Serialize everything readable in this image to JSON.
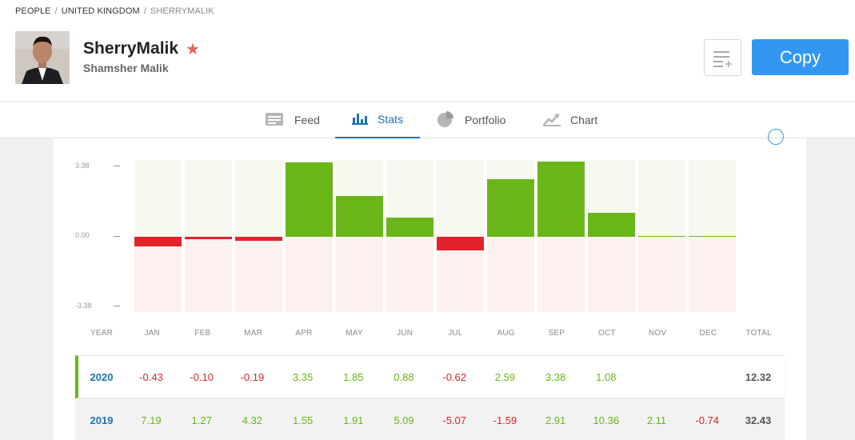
{
  "breadcrumb": [
    "PEOPLE",
    "UNITED KINGDOM",
    "SHERRYMALIK"
  ],
  "profile": {
    "username": "SherryMalik",
    "fullname": "Shamsher Malik"
  },
  "actions": {
    "copy_label": "Copy"
  },
  "tabs": [
    {
      "label": "Feed",
      "icon": "feed-icon",
      "active": false
    },
    {
      "label": "Stats",
      "icon": "stats-icon",
      "active": true
    },
    {
      "label": "Portfolio",
      "icon": "portfolio-icon",
      "active": false
    },
    {
      "label": "Chart",
      "icon": "chart-icon",
      "active": false
    }
  ],
  "colors": {
    "positive": "#6ab619",
    "negative": "#e0242a",
    "accent": "#1a73b8",
    "copy_button": "#3397f1"
  },
  "chart_data": {
    "type": "bar",
    "categories": [
      "JAN",
      "FEB",
      "MAR",
      "APR",
      "MAY",
      "JUN",
      "JUL",
      "AUG",
      "SEP",
      "OCT",
      "NOV",
      "DEC"
    ],
    "values": [
      -0.43,
      -0.1,
      -0.19,
      3.35,
      1.85,
      0.88,
      -0.62,
      2.59,
      3.38,
      1.08,
      0.02,
      0.02
    ],
    "ylim": [
      -3.38,
      3.38
    ],
    "yticks": [
      "3.38",
      "0.00",
      "-3.38"
    ]
  },
  "table": {
    "headers": {
      "year": "YEAR",
      "total": "TOTAL",
      "months": [
        "JAN",
        "FEB",
        "MAR",
        "APR",
        "MAY",
        "JUN",
        "JUL",
        "AUG",
        "SEP",
        "OCT",
        "NOV",
        "DEC"
      ]
    },
    "rows": [
      {
        "year": "2020",
        "values": [
          "-0.43",
          "-0.10",
          "-0.19",
          "3.35",
          "1.85",
          "0.88",
          "-0.62",
          "2.59",
          "3.38",
          "1.08",
          "",
          ""
        ],
        "total": "12.32"
      },
      {
        "year": "2019",
        "values": [
          "7.19",
          "1.27",
          "4.32",
          "1.55",
          "1.91",
          "5.09",
          "-5.07",
          "-1.59",
          "2.91",
          "10.36",
          "2.11",
          "-0.74"
        ],
        "total": "32.43"
      }
    ]
  }
}
